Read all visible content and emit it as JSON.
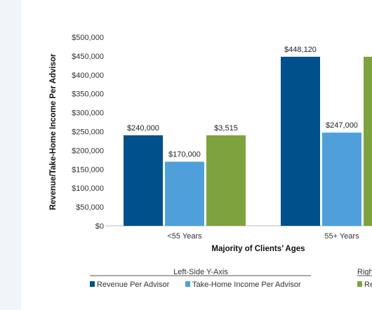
{
  "chart_data": {
    "type": "bar",
    "title": "",
    "categories": [
      "<55 Years",
      "55+ Years"
    ],
    "xlabel": "Majority of Clients’ Ages",
    "ylabel": "Revenue/Take-Home Income Per Advisor",
    "ylim": [
      0,
      500000
    ],
    "yticks": [
      "$0",
      "$50,000",
      "$100,000",
      "$150,000",
      "$200,000",
      "$250,000",
      "$300,000",
      "$350,000",
      "$400,000",
      "$450,000",
      "$500,000"
    ],
    "grid": false,
    "series": [
      {
        "name": "Revenue Per Advisor",
        "axis": "left",
        "color": "#00508c",
        "values": [
          240000,
          448120
        ],
        "labels": [
          "$240,000",
          "$448,120"
        ]
      },
      {
        "name": "Take-Home Income Per Advisor",
        "axis": "left",
        "color": "#4fa0da",
        "values": [
          170000,
          247000
        ],
        "labels": [
          "$170,000",
          "$247,000"
        ]
      },
      {
        "name": "Re",
        "axis": "right",
        "color": "#7ea33e",
        "values_left_scale": [
          240000,
          448120
        ],
        "labels": [
          "$3,515",
          ""
        ]
      }
    ],
    "legend": {
      "placement": "bottom",
      "groups": [
        {
          "title": "Left-Side Y-Axis",
          "items": [
            "Revenue Per Advisor",
            "Take-Home Income Per Advisor"
          ]
        },
        {
          "title": "Righ",
          "items": [
            "Re"
          ]
        }
      ]
    }
  }
}
